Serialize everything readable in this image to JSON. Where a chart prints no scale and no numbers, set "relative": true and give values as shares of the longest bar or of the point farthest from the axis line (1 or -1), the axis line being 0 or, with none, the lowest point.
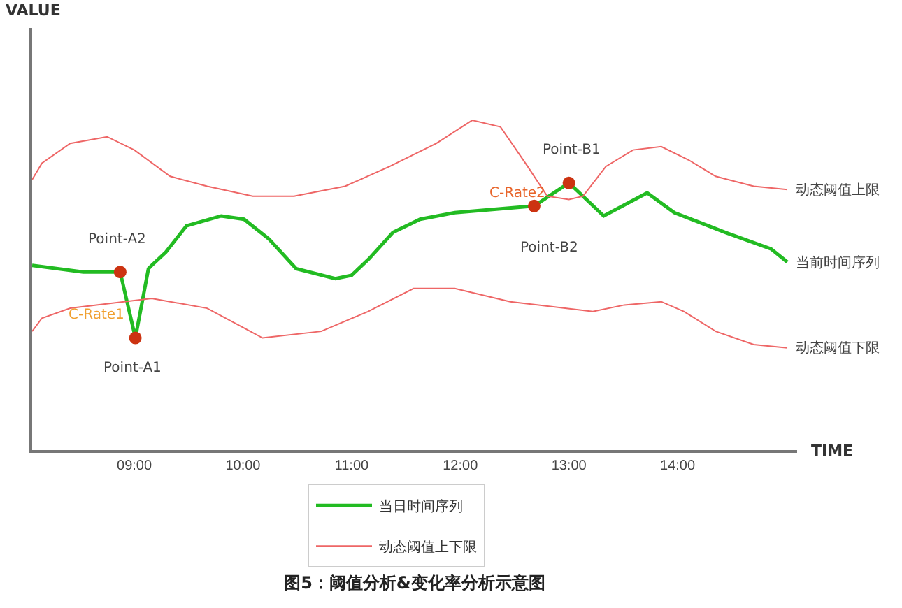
{
  "chart_data": {
    "type": "line",
    "relative": true,
    "title": "图5：阈值分析&变化率分析示意图",
    "xlabel": "TIME",
    "xlim": [
      8.06,
      15.1
    ],
    "xticks": [
      {
        "value": 9,
        "label": "09:00"
      },
      {
        "value": 10,
        "label": "10:00"
      },
      {
        "value": 11,
        "label": "11:00"
      },
      {
        "value": 12,
        "label": "12:00"
      },
      {
        "value": 13,
        "label": "13:00"
      },
      {
        "value": 14,
        "label": "14:00"
      }
    ],
    "legend": "bottom",
    "line_style": "solid",
    "series": [
      {
        "name": "当日时间序列",
        "color": "#22bb22",
        "x": [
          8.06,
          8.53,
          8.87,
          9.01,
          9.13,
          9.16,
          9.29,
          9.48,
          9.8,
          10.01,
          10.24,
          10.49,
          10.85,
          11.0,
          11.16,
          11.38,
          11.63,
          11.95,
          12.68,
          13.0,
          13.32,
          13.72,
          13.97,
          14.44,
          14.86,
          15.01
        ],
        "values": [
          0.56,
          0.54,
          0.54,
          0.34,
          0.55,
          0.56,
          0.6,
          0.68,
          0.71,
          0.7,
          0.64,
          0.55,
          0.52,
          0.53,
          0.58,
          0.66,
          0.7,
          0.72,
          0.74,
          0.81,
          0.71,
          0.78,
          0.72,
          0.66,
          0.61,
          0.57
        ]
      },
      {
        "name": "动态阈值上下限",
        "color": "#ee6666",
        "x": [
          8.06,
          8.15,
          8.41,
          8.75,
          9.0,
          9.33,
          9.67,
          10.09,
          10.47,
          10.94,
          11.35,
          11.78,
          12.11,
          12.37,
          12.62,
          12.8,
          13.0,
          13.13,
          13.34,
          13.59,
          13.85,
          14.1,
          14.35,
          14.7,
          15.01
        ],
        "values": [
          0.82,
          0.87,
          0.93,
          0.95,
          0.91,
          0.83,
          0.8,
          0.77,
          0.77,
          0.8,
          0.86,
          0.93,
          1.0,
          0.98,
          0.86,
          0.77,
          0.76,
          0.77,
          0.86,
          0.91,
          0.92,
          0.88,
          0.83,
          0.8,
          0.79
        ]
      },
      {
        "color": "#ee6666",
        "x": [
          8.06,
          8.15,
          8.41,
          9.16,
          9.67,
          10.01,
          10.18,
          10.72,
          11.15,
          11.57,
          11.95,
          12.46,
          13.22,
          13.51,
          13.85,
          14.06,
          14.35,
          14.7,
          15.01
        ],
        "values": [
          0.36,
          0.4,
          0.43,
          0.46,
          0.43,
          0.37,
          0.34,
          0.36,
          0.42,
          0.49,
          0.49,
          0.45,
          0.42,
          0.44,
          0.45,
          0.42,
          0.36,
          0.32,
          0.31
        ]
      },
      {
        "type": "scatter",
        "marker": "circle",
        "color": "#cc3311",
        "x": [
          8.87,
          9.01,
          12.68,
          13.0
        ],
        "values": [
          0.54,
          0.34,
          0.74,
          0.81
        ]
      }
    ],
    "annotations": [
      {
        "text": "Point-A2",
        "x": 8.87,
        "y": 0.54
      },
      {
        "text": "Point-A1",
        "x": 9.01,
        "y": 0.34
      },
      "C-Rate1",
      "C-Rate2",
      {
        "text": "Point-B1",
        "x": 13.0,
        "y": 0.81
      },
      "Point-B2",
      "VALUE",
      {
        "text": "动态阈值上限",
        "x": 15.01,
        "y": 0.79
      },
      {
        "text": "当前时间序列",
        "x": 15.01,
        "y": 0.57
      },
      {
        "text": "动态阈值下限",
        "x": 15.01,
        "y": 0.31
      }
    ]
  }
}
